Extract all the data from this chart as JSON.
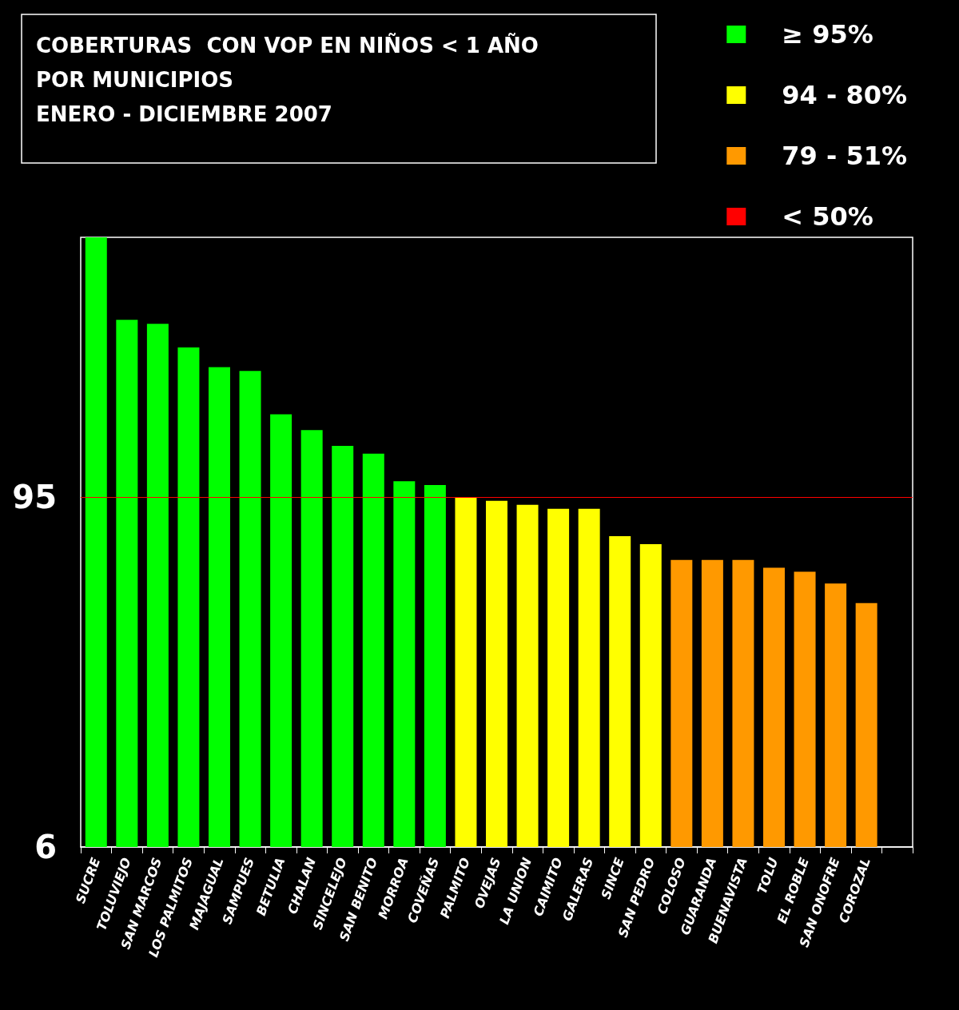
{
  "chart_data": {
    "type": "bar",
    "title": "COBERTURAS  CON VOP EN NIÑOS < 1 AÑO\nPOR MUNICIPIOS\nENERO - DICIEMBRE 2007",
    "categories": [
      "SUCRE",
      "TOLUVIEJO",
      "SAN MARCOS",
      "LOS PALMITOS",
      "MAJAGUAL",
      "SAMPUES",
      "BETULIA",
      "CHALAN",
      "SINCELEJO",
      "SAN BENITO",
      "MORROA",
      "COVEÑAS",
      "PALMITO",
      "OVEJAS",
      "LA UNION",
      "CAIMITO",
      "GALERAS",
      "SINCE",
      "SAN PEDRO",
      "COLOSO",
      "GUARANDA",
      "BUENAVISTA",
      "TOLU",
      "EL ROBLE",
      "SAN ONOFRE",
      "COROZAL",
      null
    ],
    "stacked": true,
    "series": [
      {
        "name": "≥ 95%",
        "color": "#00ff00",
        "values": [
          161,
          140,
          139,
          133,
          128,
          127,
          116,
          112,
          108,
          106,
          99,
          98,
          null,
          null,
          null,
          null,
          null,
          null,
          null,
          null,
          null,
          null,
          null,
          null,
          null,
          null,
          null
        ]
      },
      {
        "name": "94 - 80%",
        "color": "#ffff00",
        "values": [
          null,
          null,
          null,
          null,
          null,
          null,
          null,
          null,
          null,
          null,
          null,
          null,
          95,
          94,
          93,
          92,
          92,
          85,
          83,
          null,
          null,
          null,
          null,
          null,
          null,
          null,
          null
        ]
      },
      {
        "name": "79 - 51%",
        "color": "#ff9900",
        "values": [
          null,
          null,
          null,
          null,
          null,
          null,
          null,
          null,
          null,
          null,
          null,
          null,
          null,
          null,
          null,
          null,
          null,
          null,
          null,
          79,
          79,
          79,
          77,
          76,
          73,
          68,
          null
        ]
      },
      {
        "name": "< 50%",
        "color": "#ff0000",
        "values": [
          null,
          null,
          null,
          null,
          null,
          null,
          null,
          null,
          null,
          null,
          null,
          null,
          null,
          null,
          null,
          null,
          null,
          null,
          null,
          null,
          null,
          null,
          null,
          null,
          null,
          null,
          null
        ]
      }
    ],
    "ylim": [
      6,
      161
    ],
    "yticks": [
      6,
      95
    ],
    "ref_lines": [
      {
        "axis": "y",
        "value": 95,
        "color": "#ff0000"
      }
    ],
    "legend": "top right",
    "grid": false
  }
}
